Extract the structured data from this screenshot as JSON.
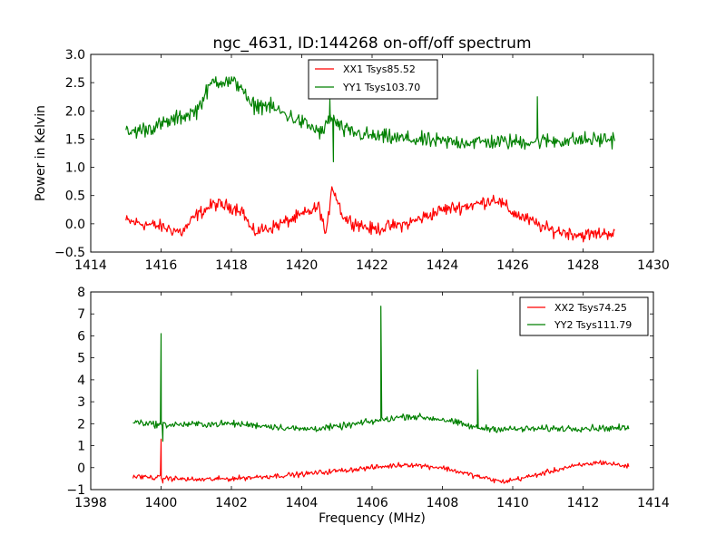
{
  "chart_data": [
    {
      "type": "line",
      "title": "ngc_4631, ID:144268 on-off/off spectrum",
      "xlabel": "",
      "ylabel": "Power in Kelvin",
      "xlim": [
        1414,
        1430
      ],
      "ylim": [
        -0.5,
        3.0
      ],
      "xticks": [
        "1414",
        "1416",
        "1418",
        "1420",
        "1422",
        "1424",
        "1426",
        "1428",
        "1430"
      ],
      "xtick_values": [
        1414,
        1416,
        1418,
        1420,
        1422,
        1424,
        1426,
        1428,
        1430
      ],
      "yticks": [
        "−0.5",
        "0.0",
        "0.5",
        "1.0",
        "1.5",
        "2.0",
        "2.5",
        "3.0"
      ],
      "ytick_values": [
        -0.5,
        0.0,
        0.5,
        1.0,
        1.5,
        2.0,
        2.5,
        3.0
      ],
      "legend_position": "upper-center",
      "x_range": [
        1415.0,
        1428.9
      ],
      "series": [
        {
          "name": "XX1 Tsys85.52",
          "color": "#ff0000",
          "anchors": [
            [
              1415.0,
              0.05
            ],
            [
              1416.0,
              -0.05
            ],
            [
              1416.6,
              -0.15
            ],
            [
              1417.0,
              0.15
            ],
            [
              1417.5,
              0.35
            ],
            [
              1418.0,
              0.3
            ],
            [
              1418.3,
              0.25
            ],
            [
              1418.6,
              -0.15
            ],
            [
              1419.2,
              -0.05
            ],
            [
              1420.0,
              0.15
            ],
            [
              1420.5,
              0.3
            ],
            [
              1420.7,
              -0.25
            ],
            [
              1420.85,
              0.7
            ],
            [
              1421.2,
              0.1
            ],
            [
              1422.0,
              -0.1
            ],
            [
              1423.0,
              0.0
            ],
            [
              1424.0,
              0.25
            ],
            [
              1425.0,
              0.35
            ],
            [
              1425.5,
              0.45
            ],
            [
              1426.0,
              0.2
            ],
            [
              1427.0,
              -0.1
            ],
            [
              1428.0,
              -0.2
            ],
            [
              1428.9,
              -0.15
            ]
          ],
          "noise": 0.1,
          "spikes": []
        },
        {
          "name": "YY1 Tsys103.70",
          "color": "#008000",
          "anchors": [
            [
              1415.0,
              1.6
            ],
            [
              1416.0,
              1.75
            ],
            [
              1417.0,
              2.0
            ],
            [
              1417.5,
              2.55
            ],
            [
              1418.0,
              2.5
            ],
            [
              1418.3,
              2.45
            ],
            [
              1418.5,
              2.1
            ],
            [
              1419.0,
              2.1
            ],
            [
              1420.0,
              1.8
            ],
            [
              1420.6,
              1.6
            ],
            [
              1420.8,
              1.9
            ],
            [
              1421.2,
              1.65
            ],
            [
              1422.0,
              1.55
            ],
            [
              1424.0,
              1.45
            ],
            [
              1426.0,
              1.45
            ],
            [
              1428.9,
              1.5
            ]
          ],
          "noise": 0.12,
          "spikes": [
            [
              1426.7,
              2.25
            ],
            [
              1420.8,
              2.2
            ],
            [
              1420.9,
              1.1
            ]
          ]
        }
      ]
    },
    {
      "type": "line",
      "title": "",
      "xlabel": "Frequency (MHz)",
      "ylabel": "",
      "xlim": [
        1398,
        1414
      ],
      "ylim": [
        -1,
        8
      ],
      "xticks": [
        "1398",
        "1400",
        "1402",
        "1404",
        "1406",
        "1408",
        "1410",
        "1412",
        "1414"
      ],
      "xtick_values": [
        1398,
        1400,
        1402,
        1404,
        1406,
        1408,
        1410,
        1412,
        1414
      ],
      "yticks": [
        "−1",
        "0",
        "1",
        "2",
        "3",
        "4",
        "5",
        "6",
        "7",
        "8"
      ],
      "ytick_values": [
        -1,
        0,
        1,
        2,
        3,
        4,
        5,
        6,
        7,
        8
      ],
      "legend_position": "upper-right",
      "x_range": [
        1399.2,
        1413.3
      ],
      "series": [
        {
          "name": "XX2 Tsys74.25",
          "color": "#ff0000",
          "anchors": [
            [
              1399.2,
              -0.4
            ],
            [
              1401.0,
              -0.55
            ],
            [
              1402.0,
              -0.5
            ],
            [
              1404.0,
              -0.3
            ],
            [
              1405.0,
              -0.15
            ],
            [
              1406.0,
              0.0
            ],
            [
              1407.0,
              0.15
            ],
            [
              1408.0,
              0.0
            ],
            [
              1409.0,
              -0.4
            ],
            [
              1409.7,
              -0.65
            ],
            [
              1410.5,
              -0.4
            ],
            [
              1411.5,
              0.0
            ],
            [
              1412.5,
              0.25
            ],
            [
              1413.3,
              0.05
            ]
          ],
          "noise": 0.1,
          "spikes": [
            [
              1400.0,
              1.3
            ],
            [
              1400.05,
              -0.7
            ]
          ]
        },
        {
          "name": "YY2 Tsys111.79",
          "color": "#008000",
          "anchors": [
            [
              1399.2,
              2.1
            ],
            [
              1400.0,
              1.95
            ],
            [
              1402.0,
              2.0
            ],
            [
              1403.0,
              1.9
            ],
            [
              1404.0,
              1.75
            ],
            [
              1405.0,
              1.85
            ],
            [
              1406.0,
              2.1
            ],
            [
              1407.0,
              2.35
            ],
            [
              1408.0,
              2.2
            ],
            [
              1409.0,
              1.8
            ],
            [
              1410.0,
              1.75
            ],
            [
              1412.0,
              1.8
            ],
            [
              1413.3,
              1.8
            ]
          ],
          "noise": 0.13,
          "spikes": [
            [
              1400.0,
              6.1
            ],
            [
              1400.05,
              1.2
            ],
            [
              1406.25,
              7.35
            ],
            [
              1409.0,
              4.45
            ]
          ]
        }
      ]
    }
  ]
}
